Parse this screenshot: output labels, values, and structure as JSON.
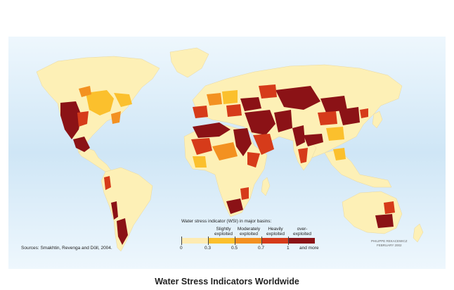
{
  "legend": {
    "title": "Water stress indicator (WSI) in major basins:",
    "categories": [
      {
        "label_line1": "Slightly",
        "label_line2": "exploited",
        "color": "#fbc02d"
      },
      {
        "label_line1": "Moderately",
        "label_line2": "exploited",
        "color": "#f39121"
      },
      {
        "label_line1": "Heavily",
        "label_line2": "exploited",
        "color": "#d63b1a"
      },
      {
        "label_line1": "over-",
        "label_line2": "exploited",
        "color": "#8b1216"
      }
    ],
    "base_color": "#fdebb2",
    "ticks": [
      "0",
      "0.3",
      "0.5",
      "0.7",
      "1",
      "and more"
    ]
  },
  "sources": "Sources:  Smakhtin, Revenga and Döll, 2004.",
  "credit": {
    "line1": "PHILIPPE REKACEWICZ",
    "line2": "FEBRUARY 2002"
  },
  "caption": "Water Stress Indicators Worldwide",
  "colors": {
    "ocean": "#d9ecf8",
    "land": "#fdf0b6"
  }
}
